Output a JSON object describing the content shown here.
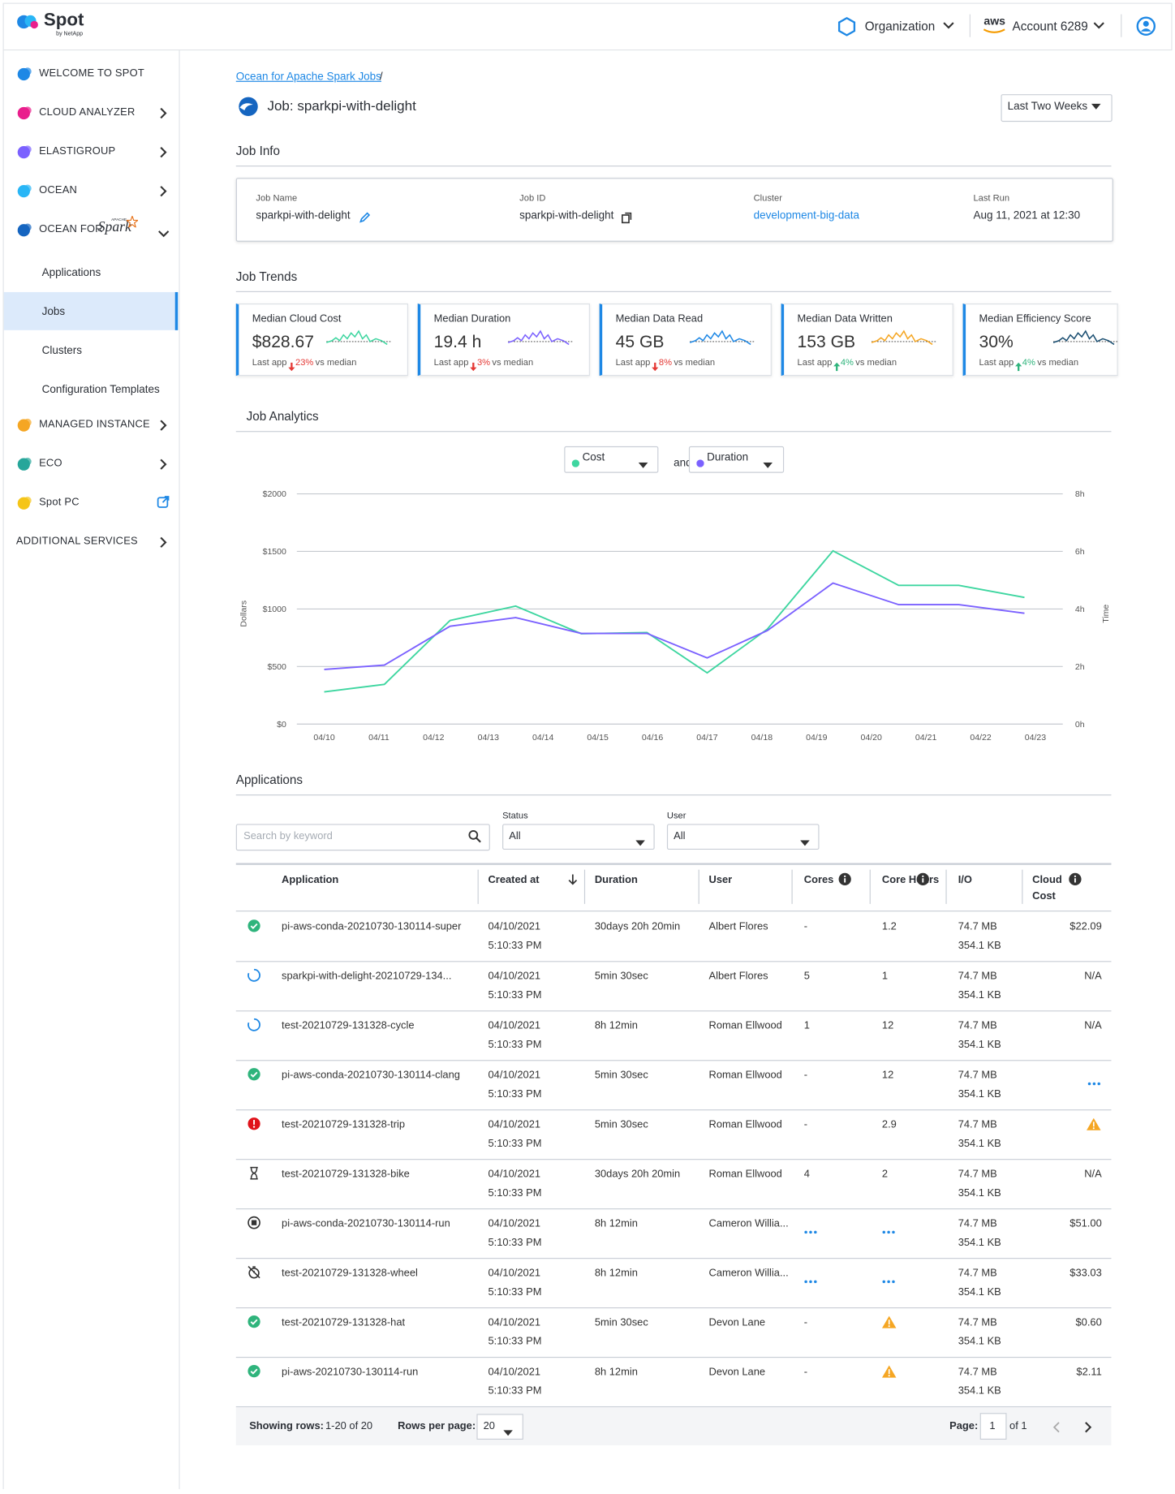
{
  "header": {
    "logo": "Spot",
    "logo_sub": "by NetApp",
    "organization": "Organization",
    "aws": "aws",
    "account": "Account 6289"
  },
  "sidebar": {
    "items": [
      {
        "label": "WELCOME TO SPOT",
        "icon_color": "#1e88e5",
        "chevron": "none"
      },
      {
        "label": "CLOUD ANALYZER",
        "icon_color": "#e91e8c",
        "chevron": "right"
      },
      {
        "label": "ELASTIGROUP",
        "icon_color": "#7b61ff",
        "chevron": "right"
      },
      {
        "label": "OCEAN",
        "icon_color": "#29b6f6",
        "chevron": "right"
      },
      {
        "label": "OCEAN FOR",
        "logo": "Spark",
        "logo_top": "APACHE",
        "icon_color": "#1565c0",
        "chevron": "down"
      },
      {
        "label": "Applications",
        "sub": true
      },
      {
        "label": "Jobs",
        "sub": true,
        "active": true
      },
      {
        "label": "Clusters",
        "sub": true
      },
      {
        "label": "Configuration Templates",
        "sub": true
      },
      {
        "label": "MANAGED INSTANCE",
        "icon_color": "#f5a623",
        "chevron": "right"
      },
      {
        "label": "ECO",
        "icon_color": "#26a69a",
        "chevron": "right"
      },
      {
        "label": "Spot PC",
        "icon_color": "#f5c518",
        "chevron": "external"
      },
      {
        "label": "ADDITIONAL SERVICES",
        "chevron": "right",
        "no_icon": true
      }
    ]
  },
  "page": {
    "breadcrumb": "Ocean for Apache Spark Jobs",
    "breadcrumb_sep": "/",
    "title": "Job: sparkpi-with-delight",
    "range": "Last Two Weeks"
  },
  "job_info": {
    "title": "Job Info",
    "fields": [
      {
        "label": "Job Name",
        "value": "sparkpi-with-delight",
        "icon": "edit"
      },
      {
        "label": "Job ID",
        "value": "sparkpi-with-delight",
        "icon": "copy"
      },
      {
        "label": "Cluster",
        "value": "development-big-data",
        "link": true
      },
      {
        "label": "Last Run",
        "value": "Aug 11, 2021 at 12:30"
      }
    ]
  },
  "job_trends": {
    "title": "Job Trends",
    "cards": [
      {
        "label": "Median Cloud Cost",
        "value": "$828.67",
        "note": "Last app",
        "change": "23%",
        "direction": "down",
        "suffix": "vs median",
        "color": "#3ed6a0"
      },
      {
        "label": "Median Duration",
        "value": "19.4 h",
        "note": "Last app",
        "change": "3%",
        "direction": "down",
        "suffix": "vs median",
        "color": "#7b61ff"
      },
      {
        "label": "Median Data Read",
        "value": "45 GB",
        "note": "Last app",
        "change": "8%",
        "direction": "down",
        "suffix": "vs median",
        "color": "#1e88e5"
      },
      {
        "label": "Median Data Written",
        "value": "153 GB",
        "note": "Last app",
        "change": "4%",
        "direction": "up",
        "suffix": "vs median",
        "color": "#f5a623"
      },
      {
        "label": "Median Efficiency Score",
        "value": "30%",
        "note": "Last app",
        "change": "4%",
        "direction": "up",
        "suffix": "vs median",
        "color": "#1b4f72"
      }
    ]
  },
  "job_analytics": {
    "title": "Job Analytics",
    "joiner": "and"
  },
  "chart_data": {
    "type": "line",
    "y_label": "Dollars",
    "y2_label": "Time",
    "x": [
      0,
      1.1,
      2.3,
      3.5,
      4.7,
      5.9,
      7,
      8.1,
      9.3,
      10.5,
      11.6,
      12.8
    ],
    "xlim": [
      -0.5,
      13.5
    ],
    "xticks": [
      {
        "value": 0,
        "label": "04/10"
      },
      {
        "value": 1,
        "label": "04/11"
      },
      {
        "value": 2,
        "label": "04/12"
      },
      {
        "value": 3,
        "label": "04/13"
      },
      {
        "value": 4,
        "label": "04/14"
      },
      {
        "value": 5,
        "label": "04/15"
      },
      {
        "value": 6,
        "label": "04/16"
      },
      {
        "value": 7,
        "label": "04/17"
      },
      {
        "value": 8,
        "label": "04/18"
      },
      {
        "value": 9,
        "label": "04/19"
      },
      {
        "value": 10,
        "label": "04/20"
      },
      {
        "value": 11,
        "label": "04/21"
      },
      {
        "value": 12,
        "label": "04/22"
      },
      {
        "value": 13,
        "label": "04/23"
      }
    ],
    "ylim": [
      0,
      2000
    ],
    "yticks": [
      {
        "value": 0,
        "label": "$0"
      },
      {
        "value": 500,
        "label": "$500"
      },
      {
        "value": 1000,
        "label": "$1000"
      },
      {
        "value": 1500,
        "label": "$1500"
      },
      {
        "value": 2000,
        "label": "$2000"
      }
    ],
    "y2lim": [
      0,
      8
    ],
    "y2ticks": [
      {
        "value": 0,
        "label": "0h"
      },
      {
        "value": 2,
        "label": "2h"
      },
      {
        "value": 4,
        "label": "4h"
      },
      {
        "value": 6,
        "label": "6h"
      },
      {
        "value": 8,
        "label": "8h"
      }
    ],
    "grid": true,
    "series": [
      {
        "name": "Cost",
        "color": "#3ed6a0",
        "values": [
          280,
          345,
          900,
          1025,
          785,
          795,
          445,
          825,
          1505,
          1205,
          1205,
          1100
        ]
      },
      {
        "name": "Duration",
        "color": "#7b61ff",
        "axis": "y2",
        "values": [
          1.9,
          2.05,
          3.4,
          3.7,
          3.15,
          3.15,
          2.3,
          3.25,
          4.9,
          4.15,
          4.15,
          3.85
        ]
      }
    ]
  },
  "applications": {
    "title": "Applications",
    "search": "Search by keyword",
    "filters": [
      {
        "label": "Status",
        "value": "All"
      },
      {
        "label": "User",
        "value": "All"
      }
    ],
    "columns": [
      "Application",
      "Created at",
      "Duration",
      "User",
      "Cores",
      "Core Hours",
      "I/O",
      "Cloud Cost"
    ],
    "rows": [
      {
        "status": "success",
        "cells": [
          "pi-aws-conda-20210730-130114-super",
          "04/10/2021",
          "5:10:33 PM",
          "30days 20h 20min",
          "Albert Flores",
          "-",
          "1.2",
          "74.7 MB",
          "354.1 KB",
          "$22.09"
        ]
      },
      {
        "status": "running",
        "cells": [
          "sparkpi-with-delight-20210729-134...",
          "04/10/2021",
          "5:10:33 PM",
          "5min 30sec",
          "Albert Flores",
          "5",
          "1",
          "74.7 MB",
          "354.1 KB",
          "N/A"
        ]
      },
      {
        "status": "running",
        "cells": [
          "test-20210729-131328-cycle",
          "04/10/2021",
          "5:10:33 PM",
          "8h 12min",
          "Roman Ellwood",
          "1",
          "12",
          "74.7 MB",
          "354.1 KB",
          "N/A"
        ]
      },
      {
        "status": "success",
        "cells": [
          "pi-aws-conda-20210730-130114-clang",
          "04/10/2021",
          "5:10:33 PM",
          "5min 30sec",
          "Roman Ellwood",
          "-",
          "12",
          "74.7 MB",
          "354.1 KB",
          {
            "icon": "more"
          }
        ]
      },
      {
        "status": "error",
        "cells": [
          "test-20210729-131328-trip",
          "04/10/2021",
          "5:10:33 PM",
          "5min 30sec",
          "Roman Ellwood",
          "-",
          "2.9",
          "74.7 MB",
          "354.1 KB",
          {
            "icon": "warning"
          }
        ]
      },
      {
        "status": "pending",
        "cells": [
          "test-20210729-131328-bike",
          "04/10/2021",
          "5:10:33 PM",
          "30days 20h 20min",
          "Roman Ellwood",
          "4",
          "2",
          "74.7 MB",
          "354.1 KB",
          "N/A"
        ]
      },
      {
        "status": "stopped",
        "cells": [
          "pi-aws-conda-20210730-130114-run",
          "04/10/2021",
          "5:10:33 PM",
          "8h 12min",
          "Cameron Willia...",
          {
            "icon": "more"
          },
          {
            "icon": "more"
          },
          "74.7 MB",
          "354.1 KB",
          "$51.00"
        ]
      },
      {
        "status": "timer",
        "cells": [
          "test-20210729-131328-wheel",
          "04/10/2021",
          "5:10:33 PM",
          "8h 12min",
          "Cameron Willia...",
          {
            "icon": "more"
          },
          {
            "icon": "more"
          },
          "74.7 MB",
          "354.1 KB",
          "$33.03"
        ]
      },
      {
        "status": "success",
        "cells": [
          "test-20210729-131328-hat",
          "04/10/2021",
          "5:10:33 PM",
          "5min 30sec",
          "Devon Lane",
          "-",
          {
            "icon": "warning"
          },
          "74.7 MB",
          "354.1 KB",
          "$0.60"
        ]
      },
      {
        "status": "success",
        "cells": [
          "pi-aws-20210730-130114-run",
          "04/10/2021",
          "5:10:33 PM",
          "8h 12min",
          "Devon Lane",
          "-",
          {
            "icon": "warning"
          },
          "74.7 MB",
          "354.1 KB",
          "$2.11"
        ]
      }
    ],
    "footer": {
      "showing_label": "Showing rows:",
      "showing": "1-20 of 20",
      "per_page_label": "Rows per page:",
      "per_page": "20",
      "page_label": "Page:",
      "page": "1",
      "of": "of 1"
    }
  }
}
